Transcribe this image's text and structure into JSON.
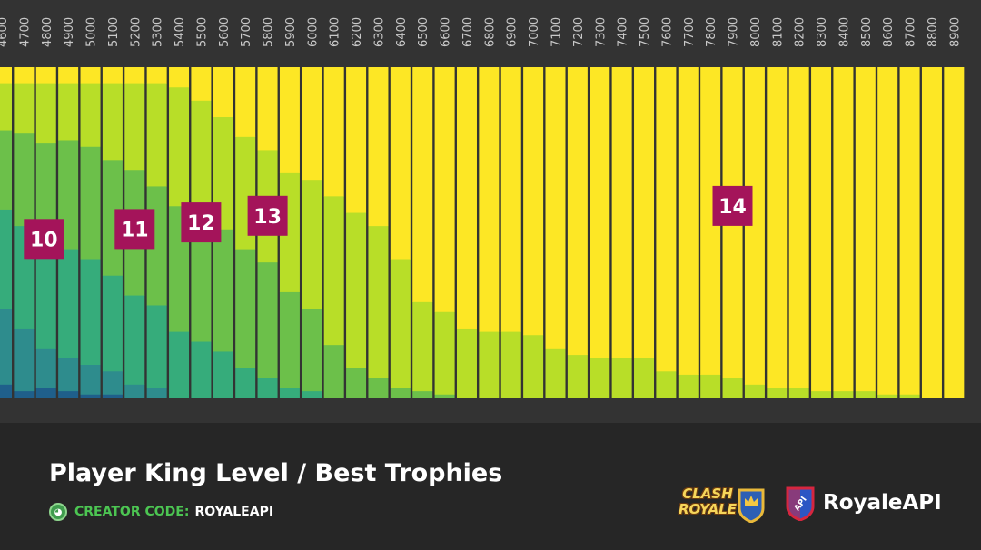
{
  "chart_data": {
    "type": "bar",
    "stacked": true,
    "orientation": "vertical",
    "title": "Player King Level / Best Trophies",
    "categories": [
      "4600",
      "4700",
      "4800",
      "4900",
      "5000",
      "5100",
      "5200",
      "5300",
      "5400",
      "5500",
      "5600",
      "5700",
      "5800",
      "5900",
      "6000",
      "6100",
      "6200",
      "6300",
      "6400",
      "6500",
      "6600",
      "6700",
      "6800",
      "6900",
      "7000",
      "7100",
      "7200",
      "7300",
      "7400",
      "7500",
      "7600",
      "7700",
      "7800",
      "7900",
      "8000",
      "8100",
      "8200",
      "8300",
      "8400",
      "8500",
      "8600",
      "8700",
      "8800",
      "8900"
    ],
    "king_level_share_percent": {
      "lt10": [
        4,
        2,
        3,
        2,
        1,
        1,
        0,
        0,
        0,
        0,
        0,
        0,
        0,
        0,
        0,
        0,
        0,
        0,
        0,
        0,
        0,
        0,
        0,
        0,
        0,
        0,
        0,
        0,
        0,
        0,
        0,
        0,
        0,
        0,
        0,
        0,
        0,
        0,
        0,
        0,
        0,
        0,
        0,
        0
      ],
      "10": [
        23,
        19,
        12,
        10,
        9,
        7,
        4,
        3,
        0,
        0,
        0,
        0,
        0,
        0,
        0,
        0,
        0,
        0,
        0,
        0,
        0,
        0,
        0,
        0,
        0,
        0,
        0,
        0,
        0,
        0,
        0,
        0,
        0,
        0,
        0,
        0,
        0,
        0,
        0,
        0,
        0,
        0,
        0,
        0
      ],
      "11": [
        30,
        31,
        32,
        33,
        32,
        29,
        27,
        25,
        20,
        17,
        14,
        9,
        6,
        3,
        2,
        0,
        0,
        0,
        0,
        0,
        0,
        0,
        0,
        0,
        0,
        0,
        0,
        0,
        0,
        0,
        0,
        0,
        0,
        0,
        0,
        0,
        0,
        0,
        0,
        0,
        0,
        0,
        0,
        0
      ],
      "12": [
        24,
        28,
        30,
        33,
        34,
        35,
        38,
        36,
        38,
        37,
        37,
        36,
        35,
        29,
        25,
        16,
        9,
        6,
        3,
        2,
        1,
        0,
        0,
        0,
        0,
        0,
        0,
        0,
        0,
        0,
        0,
        0,
        0,
        0,
        0,
        0,
        0,
        0,
        0,
        0,
        0,
        0,
        0,
        0
      ],
      "13": [
        14,
        15,
        18,
        17,
        19,
        23,
        26,
        31,
        36,
        36,
        34,
        34,
        34,
        36,
        39,
        45,
        47,
        46,
        39,
        27,
        25,
        21,
        20,
        20,
        19,
        15,
        13,
        12,
        12,
        12,
        8,
        7,
        7,
        6,
        4,
        3,
        3,
        2,
        2,
        2,
        1,
        1,
        0,
        0
      ],
      "14": [
        5,
        5,
        5,
        5,
        5,
        5,
        5,
        5,
        6,
        10,
        15,
        21,
        25,
        32,
        34,
        39,
        44,
        48,
        58,
        71,
        74,
        79,
        80,
        80,
        81,
        85,
        87,
        88,
        88,
        88,
        92,
        93,
        93,
        94,
        96,
        97,
        97,
        98,
        98,
        98,
        99,
        99,
        100,
        100
      ]
    },
    "series_labels": [
      "10",
      "11",
      "12",
      "13",
      "14"
    ],
    "colors": {
      "lt10": "#1f5f8b",
      "10": "#2e8c8d",
      "11": "#36ac7b",
      "12": "#6cc04a",
      "13": "#b8de28",
      "14": "#fde725"
    },
    "label_colors": {
      "box": "#a4145a",
      "text": "#ffffff"
    },
    "ylim": [
      0,
      100
    ],
    "grid": false,
    "legend": "inline labels"
  },
  "footer": {
    "title": "Player King Level / Best Trophies",
    "creator_label": "CREATOR CODE:",
    "creator_value": "ROYALEAPI",
    "brand_game_line1": "CLASH",
    "brand_game_line2": "ROYALE",
    "brand_api": "RoyaleAPI",
    "brand_api_badge": "API"
  }
}
